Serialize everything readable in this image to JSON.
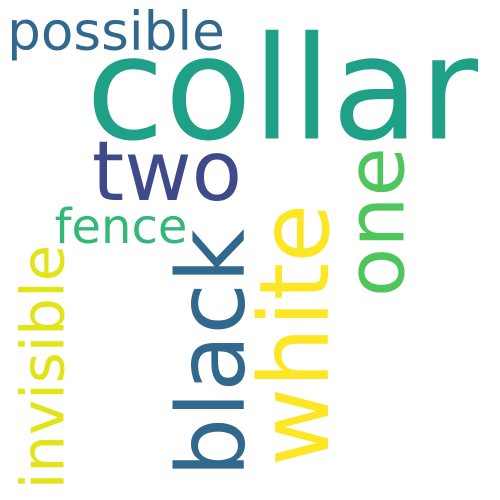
{
  "words": [
    {
      "key": "collar",
      "text": "collar",
      "color": "#1fa187",
      "orientation": "horizontal"
    },
    {
      "key": "two",
      "text": "two",
      "color": "#3e4a89",
      "orientation": "horizontal"
    },
    {
      "key": "possible",
      "text": "possible",
      "color": "#31688e",
      "orientation": "horizontal"
    },
    {
      "key": "fence",
      "text": "fence",
      "color": "#35b779",
      "orientation": "horizontal"
    },
    {
      "key": "black",
      "text": "black",
      "color": "#31688e",
      "orientation": "vertical"
    },
    {
      "key": "white",
      "text": "white",
      "color": "#fde725",
      "orientation": "vertical"
    },
    {
      "key": "one",
      "text": "one",
      "color": "#4fc65c",
      "orientation": "vertical"
    },
    {
      "key": "invisible",
      "text": "invisible",
      "color": "#e3e418",
      "orientation": "vertical"
    }
  ]
}
